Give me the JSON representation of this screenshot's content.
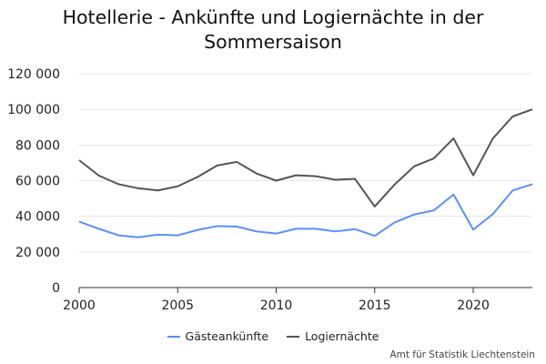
{
  "chart_data": {
    "type": "line",
    "title": [
      "Hotellerie - Ankünfte und Logiernächte in der",
      "Sommersaison"
    ],
    "x": [
      2000,
      2001,
      2002,
      2003,
      2004,
      2005,
      2006,
      2007,
      2008,
      2009,
      2010,
      2011,
      2012,
      2013,
      2014,
      2015,
      2016,
      2017,
      2018,
      2019,
      2020,
      2021,
      2022,
      2023
    ],
    "series": [
      {
        "name": "Gästeankünfte",
        "color": "#5b8ff9",
        "values": [
          37000,
          33000,
          29300,
          28200,
          29700,
          29300,
          32300,
          34500,
          34200,
          31500,
          30300,
          33000,
          33000,
          31500,
          32800,
          29000,
          36500,
          41000,
          43300,
          52200,
          32500,
          41300,
          54500,
          58000
        ]
      },
      {
        "name": "Logiernächte",
        "color": "#555555",
        "values": [
          71500,
          62800,
          58000,
          55700,
          54500,
          56800,
          62000,
          68500,
          70500,
          64000,
          60000,
          63000,
          62500,
          60500,
          61000,
          45500,
          57700,
          68000,
          72500,
          83700,
          63000,
          83700,
          96000,
          100000
        ]
      }
    ],
    "ylim": [
      0,
      120000
    ],
    "yticks": [
      0,
      20000,
      40000,
      60000,
      80000,
      100000,
      120000
    ],
    "ytick_labels": [
      "0",
      "20 000",
      "40 000",
      "60 000",
      "80 000",
      "100 000",
      "120 000"
    ],
    "xticks": [
      2000,
      2005,
      2010,
      2015,
      2020
    ],
    "xtick_labels": [
      "2000",
      "2005",
      "2010",
      "2015",
      "2020"
    ],
    "grid": true,
    "legend_position": "bottom-center",
    "source": "Amt für Statistik Liechtenstein"
  }
}
